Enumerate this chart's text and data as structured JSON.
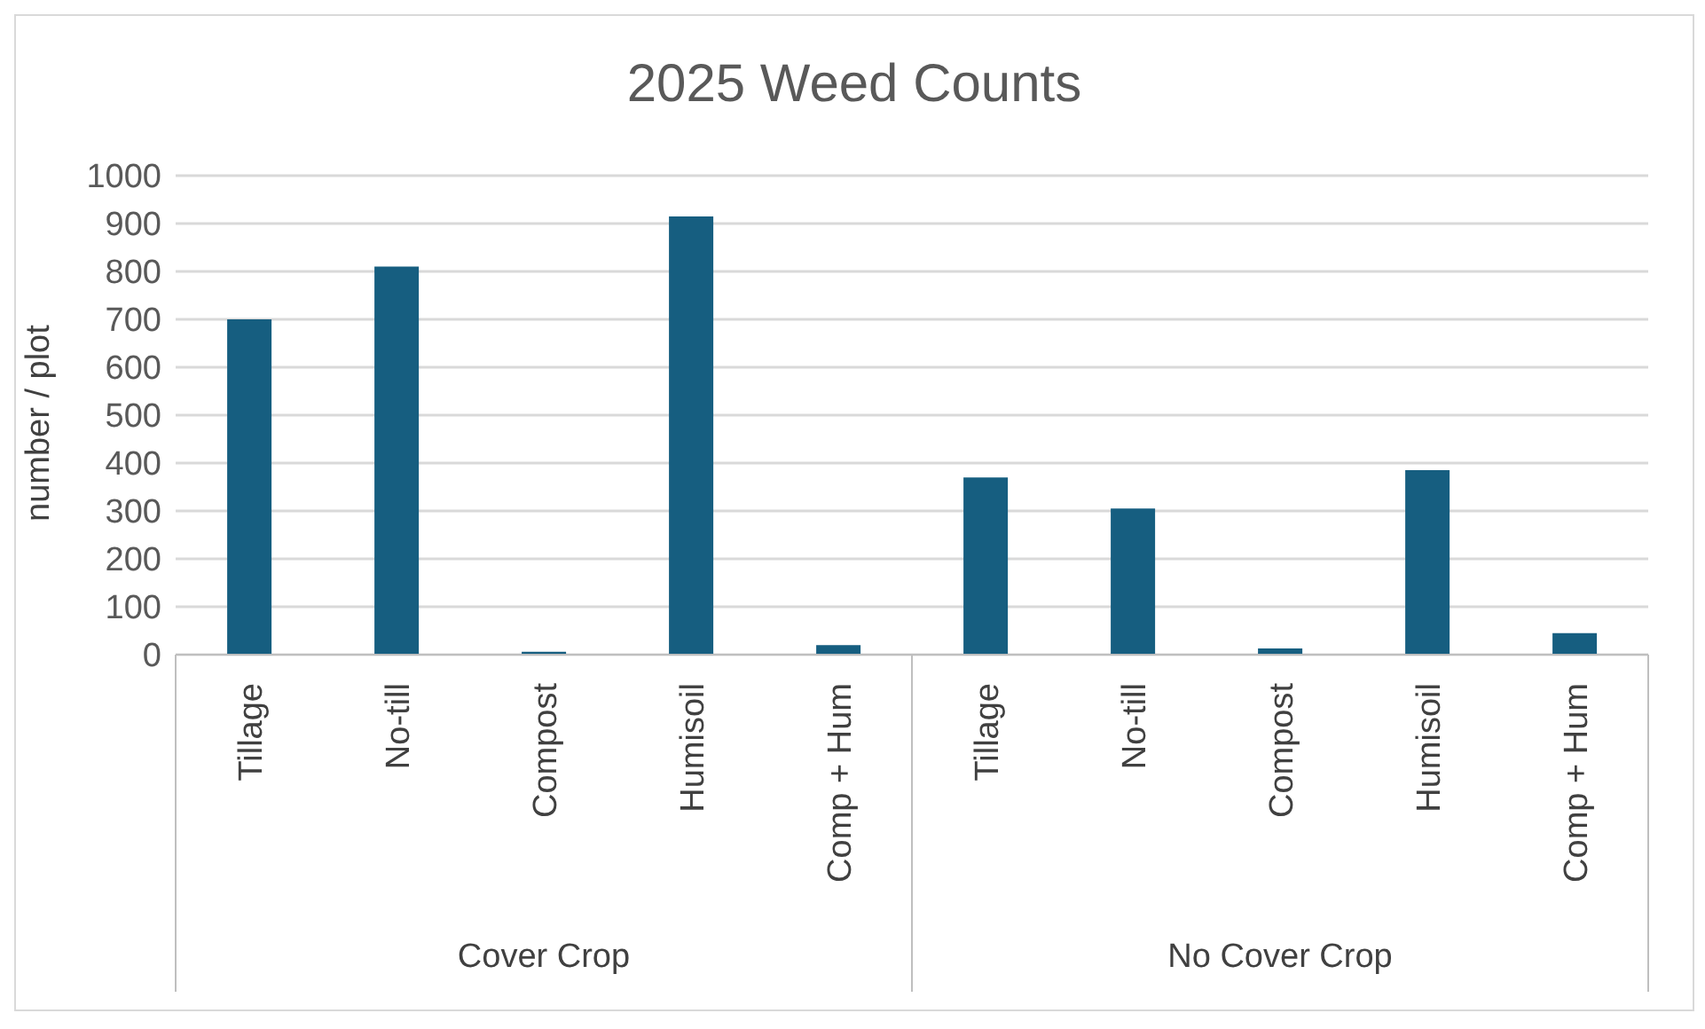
{
  "chart_data": {
    "type": "bar",
    "title": "2025 Weed Counts",
    "ylabel": "number / plot",
    "categories": [
      "Tillage",
      "No-till",
      "Compost",
      "Humisoil",
      "Comp + Hum",
      "Tillage",
      "No-till",
      "Compost",
      "Humisoil",
      "Comp + Hum"
    ],
    "values": [
      700,
      810,
      6,
      915,
      20,
      370,
      305,
      13,
      385,
      45
    ],
    "color": "#165e80",
    "ylim": [
      0,
      1000
    ],
    "yticks": [
      0,
      100,
      200,
      300,
      400,
      500,
      600,
      700,
      800,
      900,
      1000
    ],
    "grid": "y",
    "annotations": [
      "Cover Crop",
      "No Cover Crop"
    ]
  }
}
